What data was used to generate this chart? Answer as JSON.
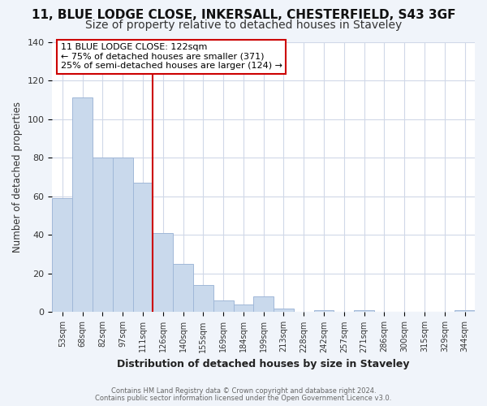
{
  "title1": "11, BLUE LODGE CLOSE, INKERSALL, CHESTERFIELD, S43 3GF",
  "title2": "Size of property relative to detached houses in Staveley",
  "xlabel": "Distribution of detached houses by size in Staveley",
  "ylabel": "Number of detached properties",
  "bar_labels": [
    "53sqm",
    "68sqm",
    "82sqm",
    "97sqm",
    "111sqm",
    "126sqm",
    "140sqm",
    "155sqm",
    "169sqm",
    "184sqm",
    "199sqm",
    "213sqm",
    "228sqm",
    "242sqm",
    "257sqm",
    "271sqm",
    "286sqm",
    "300sqm",
    "315sqm",
    "329sqm",
    "344sqm"
  ],
  "bar_values": [
    59,
    111,
    80,
    80,
    67,
    41,
    25,
    14,
    6,
    4,
    8,
    2,
    0,
    1,
    0,
    1,
    0,
    0,
    0,
    0,
    1
  ],
  "bar_color": "#c9d9ec",
  "bar_edge_color": "#a0b8d8",
  "ylim": [
    0,
    140
  ],
  "yticks": [
    0,
    20,
    40,
    60,
    80,
    100,
    120,
    140
  ],
  "annotation_title": "11 BLUE LODGE CLOSE: 122sqm",
  "annotation_line1": "← 75% of detached houses are smaller (371)",
  "annotation_line2": "25% of semi-detached houses are larger (124) →",
  "vline_color": "#cc0000",
  "annotation_box_color": "#ffffff",
  "annotation_box_edge": "#cc0000",
  "footer1": "Contains HM Land Registry data © Crown copyright and database right 2024.",
  "footer2": "Contains public sector information licensed under the Open Government Licence v3.0.",
  "fig_background_color": "#f0f4fa",
  "ax_background_color": "#ffffff",
  "grid_color": "#d0d8e8",
  "title1_fontsize": 11,
  "title2_fontsize": 10,
  "title1_fontweight": "bold"
}
